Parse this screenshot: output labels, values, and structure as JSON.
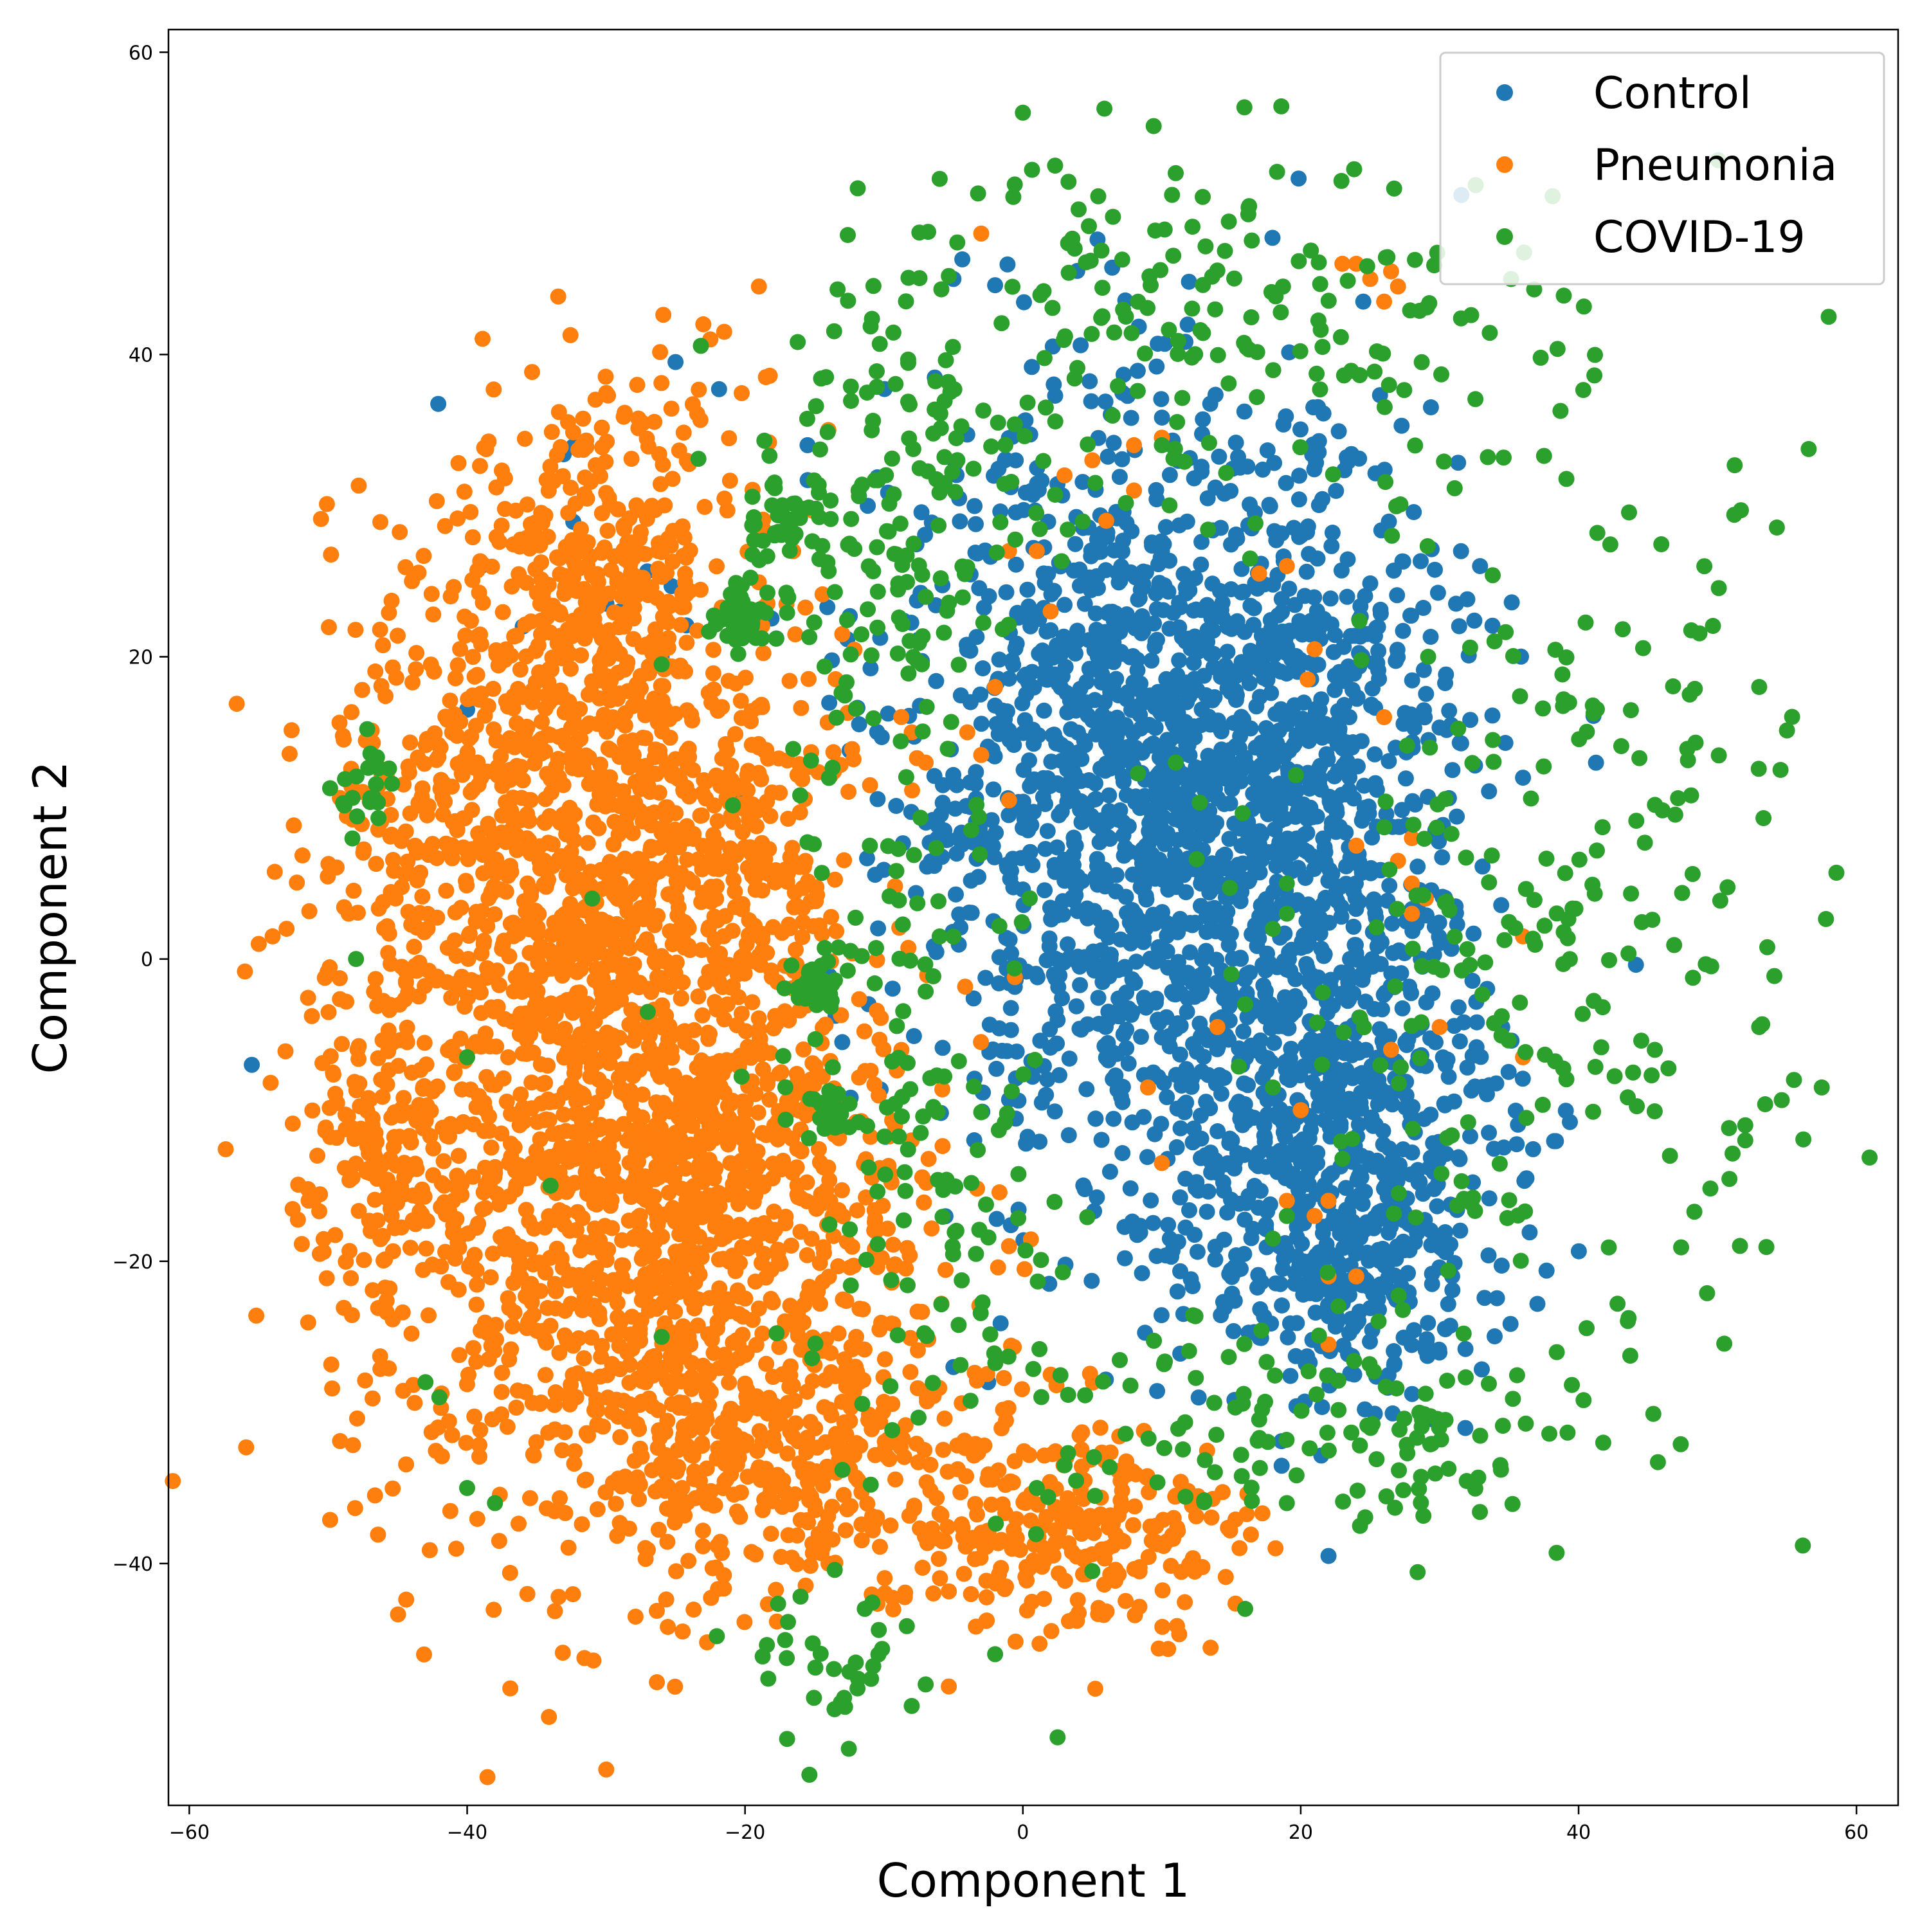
{
  "chart_data": {
    "type": "scatter",
    "title": "",
    "xlabel": "Component 1",
    "ylabel": "Component 2",
    "xlim": [
      -61.5,
      63
    ],
    "ylim": [
      -56,
      61.5
    ],
    "xticks": [
      -60,
      -40,
      -20,
      0,
      20,
      40,
      60
    ],
    "yticks": [
      -40,
      -20,
      0,
      20,
      40,
      60
    ],
    "grid": false,
    "legend_position": "top-right",
    "series": [
      {
        "name": "Control",
        "color": "#1f77b4",
        "clusters": [
          {
            "cx": 9,
            "cy": 12,
            "sx": 9,
            "sy": 12,
            "n": 1500
          },
          {
            "cx": 21,
            "cy": -10,
            "sx": 7,
            "sy": 8,
            "n": 650
          },
          {
            "cx": 22,
            "cy": 12,
            "sx": 5,
            "sy": 9,
            "n": 320
          },
          {
            "cx": 24,
            "cy": -22,
            "sx": 5,
            "sy": 4,
            "n": 170
          },
          {
            "cx": -30,
            "cy": 30,
            "sx": 5,
            "sy": 6,
            "n": 12
          }
        ],
        "outliers": [
          [
            -55.5,
            -7
          ],
          [
            -5,
            45
          ],
          [
            -15.5,
            34
          ],
          [
            22,
            -39.5
          ],
          [
            24.5,
            43.5
          ],
          [
            36,
            12
          ],
          [
            -25,
            39.5
          ],
          [
            -13,
            -5.5
          ],
          [
            -5,
            -27
          ],
          [
            -2.5,
            -28
          ],
          [
            -40,
            16.5
          ],
          [
            -32,
            13
          ],
          [
            -28,
            10
          ],
          [
            -36,
            22
          ],
          [
            -29,
            23
          ],
          [
            -26,
            20
          ]
        ]
      },
      {
        "name": "Pneumonia",
        "color": "#ff7f0e",
        "clusters": [
          {
            "cx": -28,
            "cy": -15,
            "sx": 10,
            "sy": 13,
            "n": 1300
          },
          {
            "cx": -36,
            "cy": 8,
            "sx": 7,
            "sy": 10,
            "n": 700
          },
          {
            "cx": -30,
            "cy": 26,
            "sx": 5,
            "sy": 6,
            "n": 320
          },
          {
            "cx": -22,
            "cy": 7,
            "sx": 5,
            "sy": 9,
            "n": 280
          },
          {
            "cx": -15,
            "cy": -33,
            "sx": 8,
            "sy": 4,
            "n": 320
          },
          {
            "cx": 4,
            "cy": -38,
            "sx": 6,
            "sy": 3.5,
            "n": 230
          },
          {
            "cx": -47,
            "cy": -14,
            "sx": 3,
            "sy": 4,
            "n": 110
          },
          {
            "cx": -24,
            "cy": -15,
            "sx": 6,
            "sy": 6,
            "n": 240
          }
        ],
        "outliers": [
          [
            -55,
            1
          ],
          [
            -54,
            1.5
          ],
          [
            -53,
            2
          ],
          [
            -22.5,
            41
          ],
          [
            -23,
            42
          ],
          [
            -21.5,
            41.5
          ],
          [
            -19,
            44.5
          ],
          [
            -18.5,
            38.5
          ],
          [
            24,
            46
          ],
          [
            25,
            45
          ],
          [
            26.5,
            45.5
          ],
          [
            23,
            46
          ],
          [
            27,
            44.5
          ],
          [
            26,
            43.5
          ],
          [
            -3,
            48
          ],
          [
            2,
            23
          ],
          [
            -1,
            27
          ],
          [
            1,
            27
          ],
          [
            -2,
            18
          ],
          [
            -4,
            15
          ],
          [
            -3,
            13.5
          ],
          [
            -8,
            15
          ],
          [
            -7,
            13
          ],
          [
            -11,
            11.5
          ],
          [
            -1,
            10.5
          ],
          [
            6,
            29
          ],
          [
            5,
            33
          ],
          [
            8,
            34
          ],
          [
            8,
            31
          ],
          [
            10,
            34.5
          ],
          [
            3,
            32
          ],
          [
            17,
            25.5
          ],
          [
            19,
            26
          ],
          [
            21,
            20.5
          ],
          [
            20.5,
            18.5
          ],
          [
            26,
            16
          ],
          [
            24,
            7.5
          ],
          [
            27,
            6.5
          ],
          [
            28,
            5
          ],
          [
            28,
            3
          ],
          [
            29,
            4
          ],
          [
            28,
            8
          ],
          [
            26.5,
            -6
          ],
          [
            20,
            -10
          ],
          [
            19,
            -16
          ],
          [
            21,
            -17
          ],
          [
            22,
            -16
          ],
          [
            22,
            -21
          ],
          [
            24,
            -21
          ],
          [
            22,
            -25.5
          ],
          [
            -1,
            -19
          ],
          [
            2,
            -27.5
          ],
          [
            -12,
            -25
          ],
          [
            -8,
            -12
          ],
          [
            36,
            1.5
          ],
          [
            36,
            -6.5
          ],
          [
            9,
            -8.5
          ],
          [
            10,
            -13.5
          ],
          [
            14,
            -4.5
          ],
          [
            30,
            -4.5
          ],
          [
            -14,
            35
          ],
          [
            -13,
            21.5
          ],
          [
            -19,
            14
          ],
          [
            -17.5,
            11
          ]
        ]
      },
      {
        "name": "COVID-19",
        "color": "#2ca02c",
        "clusters": [
          {
            "cx": -17,
            "cy": 29,
            "sx": 1.5,
            "sy": 1.5,
            "n": 40
          },
          {
            "cx": -20,
            "cy": 22.5,
            "sx": 1.2,
            "sy": 1,
            "n": 45
          },
          {
            "cx": -15,
            "cy": -2,
            "sx": 0.8,
            "sy": 1,
            "n": 25
          },
          {
            "cx": -14,
            "cy": -10,
            "sx": 1,
            "sy": 0.8,
            "n": 20
          },
          {
            "cx": -47,
            "cy": 11,
            "sx": 1.2,
            "sy": 2,
            "n": 22
          },
          {
            "cx": -13,
            "cy": -47,
            "sx": 3,
            "sy": 2.5,
            "n": 35
          },
          {
            "cx": 38,
            "cy": 0,
            "sx": 10,
            "sy": 16,
            "n": 260
          },
          {
            "cx": 15,
            "cy": 42,
            "sx": 12,
            "sy": 6,
            "n": 170
          },
          {
            "cx": -8,
            "cy": 31,
            "sx": 5,
            "sy": 8,
            "n": 160
          },
          {
            "cx": -6,
            "cy": -18,
            "sx": 6,
            "sy": 7,
            "n": 80
          },
          {
            "cx": 12,
            "cy": -30,
            "sx": 8,
            "sy": 4,
            "n": 70
          },
          {
            "cx": 28,
            "cy": -32,
            "sx": 6,
            "sy": 3,
            "n": 60
          },
          {
            "cx": -10,
            "cy": 5,
            "sx": 4,
            "sy": 10,
            "n": 70
          }
        ],
        "outliers": [
          [
            0,
            56
          ],
          [
            11,
            52
          ],
          [
            -48,
            0
          ],
          [
            -40,
            -35
          ],
          [
            -38,
            -36
          ],
          [
            -43,
            -28
          ],
          [
            -42,
            -29
          ],
          [
            -26,
            -25
          ],
          [
            -31,
            4
          ],
          [
            -26,
            19.5
          ],
          [
            -27,
            -3.5
          ],
          [
            -40,
            -6.5
          ],
          [
            -34,
            -15
          ],
          [
            55.5,
            -8
          ],
          [
            57.5,
            -8.5
          ],
          [
            52,
            -11
          ],
          [
            1,
            -35
          ],
          [
            3,
            -33.5
          ],
          [
            2.5,
            -51.5
          ],
          [
            5,
            -40.5
          ],
          [
            16,
            -43
          ],
          [
            19,
            -36
          ],
          [
            -7,
            -48
          ],
          [
            -2,
            -46
          ],
          [
            11,
            13
          ],
          [
            10,
            34
          ],
          [
            19,
            5
          ],
          [
            19,
            3
          ],
          [
            18,
            2
          ],
          [
            15,
            -1
          ],
          [
            16,
            -3
          ],
          [
            18,
            -8.5
          ],
          [
            19,
            -17
          ],
          [
            18,
            -18.5
          ],
          [
            48,
            17.5
          ],
          [
            53,
            18
          ],
          [
            53,
            -4.5
          ],
          [
            52,
            -12
          ]
        ]
      }
    ]
  }
}
